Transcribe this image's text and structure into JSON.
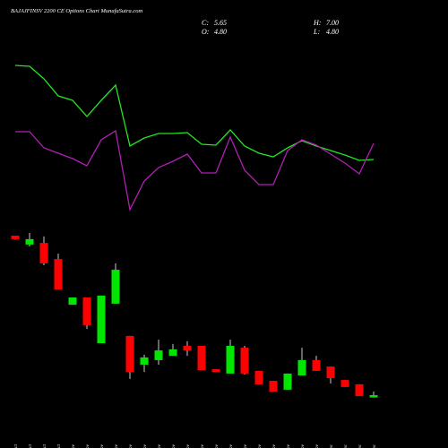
{
  "chart_data": {
    "type": "candlestick",
    "title": "BAJAJFINSV 2200 CE Options Chart MunafaSutra.com",
    "stats": {
      "labels": [
        "C:",
        "H:",
        "O:",
        "L:"
      ],
      "values": [
        5.65,
        7,
        4.8,
        4.8
      ],
      "value_labels": [
        "5.65",
        "7.00",
        "4.80",
        "4.80"
      ]
    },
    "categories": [
      "28 Oct",
      "29 Oct",
      "30 Oct",
      "31 Oct",
      "03 Nov",
      "06 Nov",
      "07 Nov",
      "10 Nov",
      "11 Nov",
      "12 Nov",
      "13 Nov",
      "14 Nov",
      "17 Nov",
      "18 Nov",
      "19 Nov",
      "20 Nov",
      "21 Nov",
      "24 Nov",
      "25 Nov",
      "26 Nov",
      "27 Nov",
      "28 Nov",
      "01 Dec",
      "02 Dec",
      "03 Dec",
      "04 Dec"
    ],
    "open": [
      65,
      61.7,
      62.3,
      56.3,
      39.3,
      42,
      25,
      39.7,
      27.7,
      17,
      18.7,
      20.3,
      24,
      24,
      15.3,
      13.7,
      23.3,
      14.7,
      11,
      7.7,
      13,
      18.7,
      16.3,
      11.3,
      9.7,
      4.8
    ],
    "high": [
      65,
      66,
      64.7,
      58.3,
      42,
      42,
      42.7,
      54.7,
      27.7,
      20.7,
      26.3,
      24.7,
      25.7,
      24,
      15.3,
      26.3,
      24,
      14.7,
      11,
      13.7,
      23.3,
      20.3,
      16.3,
      11.3,
      9.7,
      7
    ],
    "low": [
      63.5,
      61,
      54,
      45,
      39.3,
      30.3,
      25,
      39.7,
      11.7,
      14.3,
      17,
      20.3,
      20.3,
      15,
      14.3,
      13.7,
      13.3,
      9.7,
      7,
      7.7,
      13,
      14.7,
      10,
      8.7,
      5.3,
      4.8
    ],
    "close": [
      63.7,
      63.7,
      54.7,
      45,
      42,
      31.7,
      42.7,
      52.3,
      14.3,
      19.7,
      22.3,
      22.7,
      22.3,
      15,
      14.3,
      24,
      13.7,
      9.7,
      7,
      13.7,
      18.7,
      14.7,
      12,
      8.7,
      5.3,
      5.65
    ],
    "up_color": "#00e600",
    "down_color": "#ff0000",
    "wick_color": "#cccccc",
    "ylim": [
      0,
      70
    ],
    "y2lim": [
      0,
      100
    ],
    "series": [
      {
        "color": "#22e622",
        "axis": "y2",
        "values": [
          88.5,
          88,
          81,
          71.5,
          69,
          60,
          69,
          77.5,
          43.5,
          48,
          50.5,
          50.5,
          51,
          44.5,
          44,
          52.5,
          43.5,
          39.5,
          37.5,
          42.5,
          46.5,
          43.5,
          41,
          38.5,
          35.5,
          36
        ]
      },
      {
        "color": "#b020b0",
        "axis": "y2",
        "values": [
          51.5,
          51.5,
          42.5,
          39.5,
          36.5,
          32.5,
          47,
          52,
          8,
          24,
          31.5,
          35,
          39,
          28.5,
          28.5,
          48.5,
          30,
          22,
          22,
          41,
          47,
          44,
          39,
          34,
          28,
          45
        ]
      }
    ]
  }
}
